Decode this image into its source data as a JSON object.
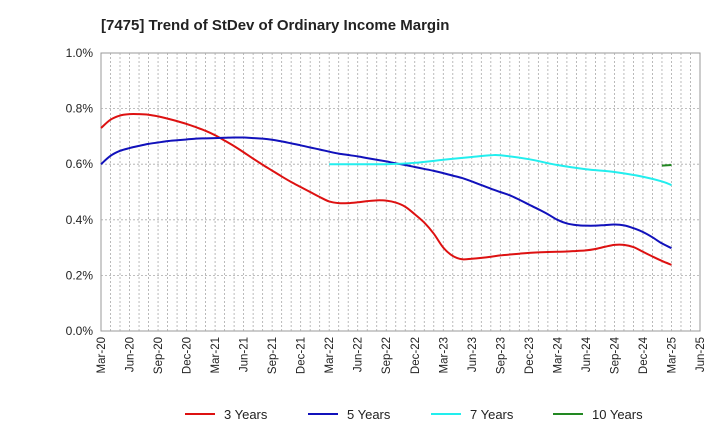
{
  "chart_data": {
    "type": "line",
    "title": "[7475]  Trend of StDev of Ordinary Income Margin",
    "xlabel": "",
    "ylabel": "",
    "ylim": [
      0,
      1.0
    ],
    "yticks": [
      {
        "value": 0.0,
        "label": "0.0%"
      },
      {
        "value": 0.2,
        "label": "0.2%"
      },
      {
        "value": 0.4,
        "label": "0.4%"
      },
      {
        "value": 0.6,
        "label": "0.6%"
      },
      {
        "value": 0.8,
        "label": "0.8%"
      },
      {
        "value": 1.0,
        "label": "1.0%"
      }
    ],
    "x_start": "Mar-20",
    "x_end": "Jun-25",
    "xticks": [
      "Mar-20",
      "Jun-20",
      "Sep-20",
      "Dec-20",
      "Mar-21",
      "Jun-21",
      "Sep-21",
      "Dec-21",
      "Mar-22",
      "Jun-22",
      "Sep-22",
      "Dec-22",
      "Mar-23",
      "Jun-23",
      "Sep-23",
      "Dec-23",
      "Mar-24",
      "Jun-24",
      "Sep-24",
      "Dec-24",
      "Mar-25",
      "Jun-25"
    ],
    "grid": true,
    "legend_position": "bottom",
    "series": [
      {
        "name": "3 Years",
        "color": "#dd1111",
        "points": [
          [
            "Mar-20",
            0.73
          ],
          [
            "Apr-20",
            0.76
          ],
          [
            "May-20",
            0.775
          ],
          [
            "Jun-20",
            0.78
          ],
          [
            "Jul-20",
            0.78
          ],
          [
            "Aug-20",
            0.778
          ],
          [
            "Sep-20",
            0.772
          ],
          [
            "Oct-20",
            0.764
          ],
          [
            "Nov-20",
            0.755
          ],
          [
            "Dec-20",
            0.745
          ],
          [
            "Jan-21",
            0.733
          ],
          [
            "Feb-21",
            0.72
          ],
          [
            "Mar-21",
            0.704
          ],
          [
            "Apr-21",
            0.685
          ],
          [
            "May-21",
            0.665
          ],
          [
            "Jun-21",
            0.643
          ],
          [
            "Jul-21",
            0.62
          ],
          [
            "Aug-21",
            0.598
          ],
          [
            "Sep-21",
            0.577
          ],
          [
            "Oct-21",
            0.556
          ],
          [
            "Nov-21",
            0.536
          ],
          [
            "Dec-21",
            0.518
          ],
          [
            "Jan-22",
            0.5
          ],
          [
            "Feb-22",
            0.482
          ],
          [
            "Mar-22",
            0.466
          ],
          [
            "Apr-22",
            0.46
          ],
          [
            "May-22",
            0.46
          ],
          [
            "Jun-22",
            0.463
          ],
          [
            "Jul-22",
            0.467
          ],
          [
            "Aug-22",
            0.47
          ],
          [
            "Sep-22",
            0.469
          ],
          [
            "Oct-22",
            0.462
          ],
          [
            "Nov-22",
            0.447
          ],
          [
            "Dec-22",
            0.42
          ],
          [
            "Jan-23",
            0.39
          ],
          [
            "Feb-23",
            0.35
          ],
          [
            "Mar-23",
            0.3
          ],
          [
            "Apr-23",
            0.27
          ],
          [
            "May-23",
            0.258
          ],
          [
            "Jun-23",
            0.26
          ],
          [
            "Jul-23",
            0.263
          ],
          [
            "Aug-23",
            0.267
          ],
          [
            "Sep-23",
            0.272
          ],
          [
            "Oct-23",
            0.275
          ],
          [
            "Nov-23",
            0.278
          ],
          [
            "Dec-23",
            0.281
          ],
          [
            "Jan-24",
            0.283
          ],
          [
            "Feb-24",
            0.284
          ],
          [
            "Mar-24",
            0.285
          ],
          [
            "Apr-24",
            0.286
          ],
          [
            "May-24",
            0.288
          ],
          [
            "Jun-24",
            0.29
          ],
          [
            "Jul-24",
            0.295
          ],
          [
            "Aug-24",
            0.303
          ],
          [
            "Sep-24",
            0.31
          ],
          [
            "Oct-24",
            0.31
          ],
          [
            "Nov-24",
            0.302
          ],
          [
            "Dec-24",
            0.285
          ],
          [
            "Jan-25",
            0.268
          ],
          [
            "Feb-25",
            0.252
          ],
          [
            "Mar-25",
            0.238
          ]
        ]
      },
      {
        "name": "5 Years",
        "color": "#1111bb",
        "points": [
          [
            "Mar-20",
            0.6
          ],
          [
            "Apr-20",
            0.63
          ],
          [
            "May-20",
            0.648
          ],
          [
            "Jun-20",
            0.658
          ],
          [
            "Jul-20",
            0.666
          ],
          [
            "Aug-20",
            0.673
          ],
          [
            "Sep-20",
            0.678
          ],
          [
            "Oct-20",
            0.683
          ],
          [
            "Nov-20",
            0.686
          ],
          [
            "Dec-20",
            0.689
          ],
          [
            "Jan-21",
            0.692
          ],
          [
            "Feb-21",
            0.693
          ],
          [
            "Mar-21",
            0.694
          ],
          [
            "Apr-21",
            0.695
          ],
          [
            "May-21",
            0.696
          ],
          [
            "Jun-21",
            0.696
          ],
          [
            "Jul-21",
            0.694
          ],
          [
            "Aug-21",
            0.692
          ],
          [
            "Sep-21",
            0.688
          ],
          [
            "Oct-21",
            0.682
          ],
          [
            "Nov-21",
            0.675
          ],
          [
            "Dec-21",
            0.668
          ],
          [
            "Jan-22",
            0.66
          ],
          [
            "Feb-22",
            0.653
          ],
          [
            "Mar-22",
            0.645
          ],
          [
            "Apr-22",
            0.638
          ],
          [
            "May-22",
            0.633
          ],
          [
            "Jun-22",
            0.628
          ],
          [
            "Jul-22",
            0.622
          ],
          [
            "Aug-22",
            0.616
          ],
          [
            "Sep-22",
            0.61
          ],
          [
            "Oct-22",
            0.603
          ],
          [
            "Nov-22",
            0.597
          ],
          [
            "Dec-22",
            0.59
          ],
          [
            "Jan-23",
            0.583
          ],
          [
            "Feb-23",
            0.576
          ],
          [
            "Mar-23",
            0.568
          ],
          [
            "Apr-23",
            0.559
          ],
          [
            "May-23",
            0.55
          ],
          [
            "Jun-23",
            0.538
          ],
          [
            "Jul-23",
            0.525
          ],
          [
            "Aug-23",
            0.512
          ],
          [
            "Sep-23",
            0.5
          ],
          [
            "Oct-23",
            0.488
          ],
          [
            "Nov-23",
            0.472
          ],
          [
            "Dec-23",
            0.455
          ],
          [
            "Jan-24",
            0.438
          ],
          [
            "Feb-24",
            0.42
          ],
          [
            "Mar-24",
            0.4
          ],
          [
            "Apr-24",
            0.387
          ],
          [
            "May-24",
            0.381
          ],
          [
            "Jun-24",
            0.379
          ],
          [
            "Jul-24",
            0.379
          ],
          [
            "Aug-24",
            0.381
          ],
          [
            "Sep-24",
            0.383
          ],
          [
            "Oct-24",
            0.38
          ],
          [
            "Nov-24",
            0.37
          ],
          [
            "Dec-24",
            0.356
          ],
          [
            "Jan-25",
            0.337
          ],
          [
            "Feb-25",
            0.315
          ],
          [
            "Mar-25",
            0.298
          ]
        ]
      },
      {
        "name": "7 Years",
        "color": "#22eeee",
        "points": [
          [
            "Mar-22",
            0.6
          ],
          [
            "Jun-22",
            0.6
          ],
          [
            "Sep-22",
            0.6
          ],
          [
            "Dec-22",
            0.605
          ],
          [
            "Mar-23",
            0.616
          ],
          [
            "Jun-23",
            0.626
          ],
          [
            "Aug-23",
            0.632
          ],
          [
            "Sep-23",
            0.632
          ],
          [
            "Dec-23",
            0.618
          ],
          [
            "Mar-24",
            0.597
          ],
          [
            "Jun-24",
            0.582
          ],
          [
            "Sep-24",
            0.572
          ],
          [
            "Dec-24",
            0.555
          ],
          [
            "Feb-25",
            0.538
          ],
          [
            "Mar-25",
            0.525
          ]
        ]
      },
      {
        "name": "10 Years",
        "color": "#228822",
        "points": [
          [
            "Feb-25",
            0.595
          ],
          [
            "Mar-25",
            0.597
          ]
        ]
      }
    ]
  }
}
